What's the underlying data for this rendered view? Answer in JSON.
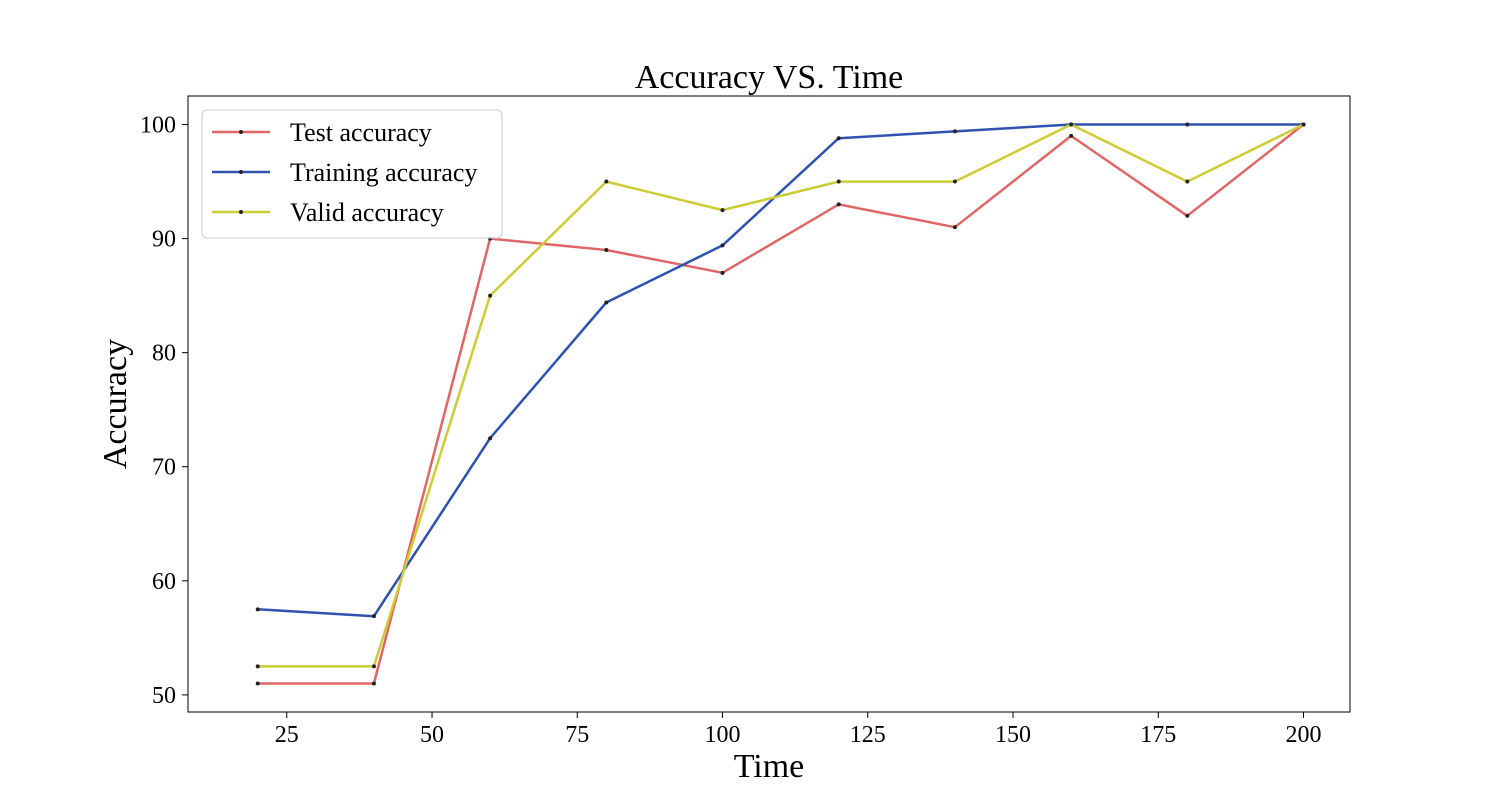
{
  "chart_data": {
    "type": "line",
    "title": "Accuracy VS. Time",
    "xlabel": "Time",
    "ylabel": "Accuracy",
    "xlim": [
      8,
      208
    ],
    "ylim": [
      48.5,
      102.5
    ],
    "xticks": [
      25,
      50,
      75,
      100,
      125,
      150,
      175,
      200
    ],
    "yticks": [
      50,
      60,
      70,
      80,
      90,
      100
    ],
    "grid": false,
    "legend": "top-left",
    "x": [
      20,
      40,
      60,
      80,
      100,
      120,
      140,
      160,
      180,
      200
    ],
    "series": [
      {
        "name": "Test accuracy",
        "color": "#e06666",
        "values": [
          51,
          51,
          90,
          89,
          87,
          93,
          91,
          99,
          92,
          100
        ]
      },
      {
        "name": "Training accuracy",
        "color": "#2f52b0",
        "values": [
          57.5,
          56.9,
          72.5,
          84.4,
          89.4,
          98.8,
          99.4,
          100,
          100,
          100
        ]
      },
      {
        "name": "Valid accuracy",
        "color": "#cccc33",
        "values": [
          52.5,
          52.5,
          85,
          95,
          92.5,
          95,
          95,
          100,
          95,
          100
        ]
      }
    ]
  }
}
